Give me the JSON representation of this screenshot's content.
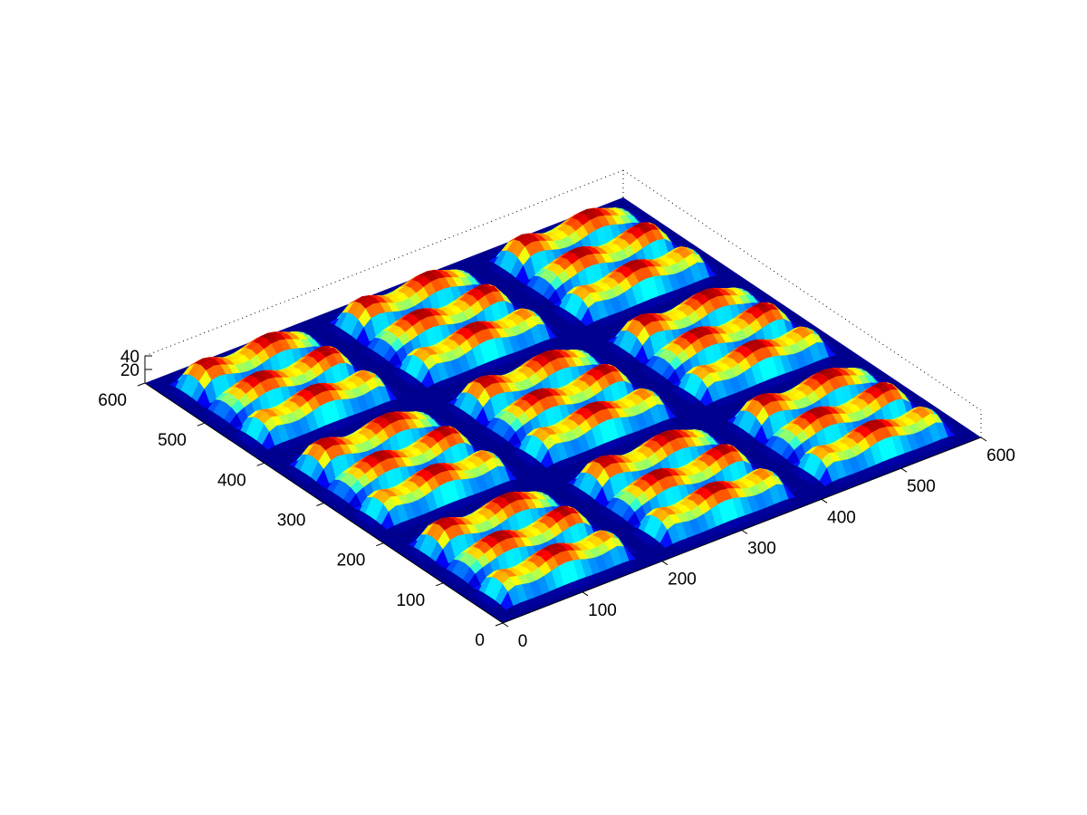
{
  "chart_data": {
    "type": "surface",
    "title": "",
    "xlabel": "",
    "ylabel": "",
    "zlabel": "",
    "xlim": [
      0,
      600
    ],
    "ylim": [
      0,
      600
    ],
    "zlim": [
      0,
      40
    ],
    "x_ticks": [
      "0",
      "100",
      "200",
      "300",
      "400",
      "500",
      "600"
    ],
    "y_ticks": [
      "0",
      "100",
      "200",
      "300",
      "400",
      "500",
      "600"
    ],
    "z_ticks": [
      "20",
      "40"
    ],
    "tile_grid": [
      3,
      3
    ],
    "ridges_per_tile": 3,
    "base_level": 0,
    "ridge_height_max": 40,
    "colormap": "jet",
    "grid": false,
    "colors": {
      "base": "#00008f",
      "low": "#0030ff",
      "mid_low": "#00d0ff",
      "mid": "#80ff80",
      "mid_high": "#ffe000",
      "high": "#ff5000",
      "peak": "#a00000"
    }
  }
}
